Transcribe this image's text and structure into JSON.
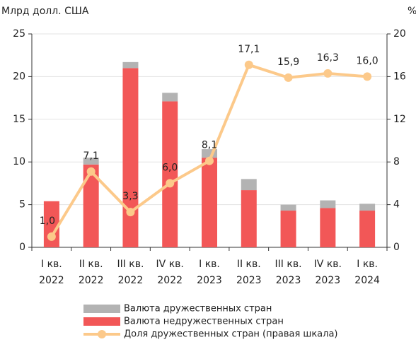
{
  "chart_data": {
    "type": "bar-line",
    "ylabel": "Млрд долл. США",
    "y2label": "%",
    "categories": [
      [
        "I кв.",
        "2022"
      ],
      [
        "II кв.",
        "2022"
      ],
      [
        "III кв.",
        "2022"
      ],
      [
        "IV кв.",
        "2022"
      ],
      [
        "I кв.",
        "2023"
      ],
      [
        "II кв.",
        "2023"
      ],
      [
        "III кв.",
        "2023"
      ],
      [
        "IV кв.",
        "2023"
      ],
      [
        "I кв.",
        "2024"
      ]
    ],
    "series": [
      {
        "name": "Валюта недружественных стран",
        "type": "bar",
        "color": "#f25757",
        "values": [
          5.4,
          9.7,
          21.0,
          17.1,
          10.5,
          6.7,
          4.3,
          4.6,
          4.3
        ]
      },
      {
        "name": "Валюта дружественных стран",
        "type": "bar",
        "color": "#b3b3b3",
        "values": [
          0,
          0.8,
          0.7,
          1.0,
          1.0,
          1.3,
          0.7,
          0.9,
          0.8
        ]
      },
      {
        "name": "Доля дружественных стран (правая шкала)",
        "type": "line",
        "axis": "y2",
        "color": "#fcc98a",
        "values": [
          1.0,
          7.1,
          3.3,
          6.0,
          8.1,
          17.1,
          15.9,
          16.3,
          16.0
        ],
        "value_labels": [
          "1,0",
          "7,1",
          "3,3",
          "6,0",
          "8,1",
          "17,1",
          "15,9",
          "16,3",
          "16,0"
        ]
      }
    ],
    "legend_order": [
      1,
      0,
      2
    ],
    "ylim": [
      0,
      25
    ],
    "yticks": [
      0,
      5,
      10,
      15,
      20,
      25
    ],
    "y2lim": [
      0,
      20
    ],
    "y2ticks": [
      0,
      4,
      8,
      12,
      16,
      20
    ],
    "grid": true
  }
}
